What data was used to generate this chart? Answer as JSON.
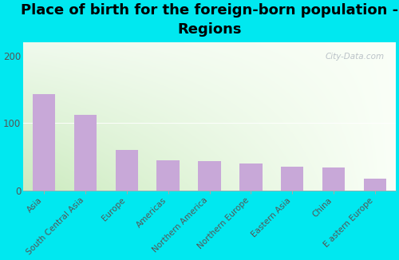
{
  "title": "Place of birth for the foreign-born population -\nRegions",
  "categories": [
    "Asia",
    "South Central Asia",
    "Europe",
    "Americas",
    "Northern America",
    "Northern Europe",
    "Eastern Asia",
    "China",
    "E astern Europe"
  ],
  "values": [
    143,
    112,
    60,
    45,
    44,
    40,
    36,
    35,
    18
  ],
  "bar_color": "#c8a8d8",
  "bg_outer": "#00e8f0",
  "ylim": [
    0,
    220
  ],
  "yticks": [
    0,
    100,
    200
  ],
  "title_fontsize": 13,
  "tick_fontsize": 7.5,
  "watermark": "City-Data.com",
  "grad_top_left": "#c8e8c0",
  "grad_top_right": "#f0f8f0",
  "grad_bottom_left": "#d8edd0",
  "grad_bottom_right": "#f8f8f0"
}
